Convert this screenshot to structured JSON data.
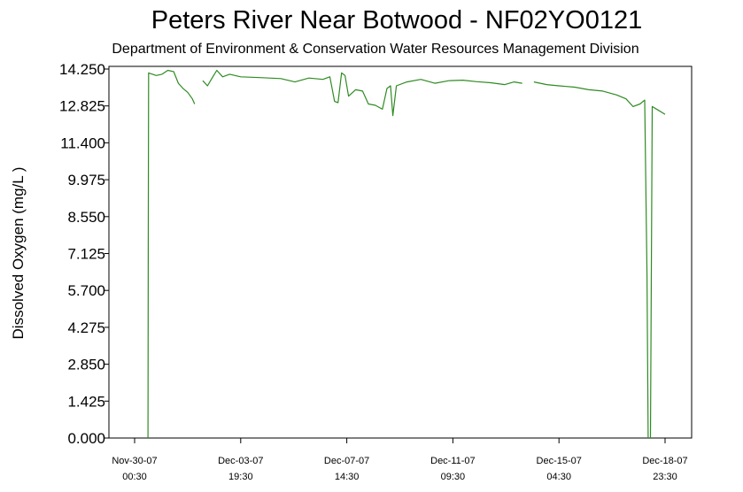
{
  "chart_data": {
    "type": "line",
    "title": "Peters River Near Botwood - NF02YO0121",
    "subtitle": "Department of Environment & Conservation Water Resources Management Division",
    "xlabel": "",
    "ylabel": "Dissolved Oxygen (mg/L )",
    "ylim": [
      0,
      14.25
    ],
    "yticks": [
      "0.000",
      "1.425",
      "2.850",
      "4.275",
      "5.700",
      "7.125",
      "8.550",
      "9.975",
      "11.400",
      "12.825",
      "14.250"
    ],
    "xticks": [
      {
        "date": "Nov-30-07",
        "time": "00:30"
      },
      {
        "date": "Dec-03-07",
        "time": "19:30"
      },
      {
        "date": "Dec-07-07",
        "time": "14:30"
      },
      {
        "date": "Dec-11-07",
        "time": "09:30"
      },
      {
        "date": "Dec-15-07",
        "time": "04:30"
      },
      {
        "date": "Dec-18-07",
        "time": "23:30"
      }
    ],
    "grid": false,
    "series": [
      {
        "color": "#2e8b22",
        "segments": [
          [
            [
              "2007-11-30T12:00",
              0.0
            ],
            [
              "2007-11-30T12:10",
              7.1
            ],
            [
              "2007-11-30T12:30",
              14.1
            ],
            [
              "2007-11-30T19:00",
              14.0
            ],
            [
              "2007-12-01T00:00",
              14.05
            ],
            [
              "2007-12-01T05:00",
              14.2
            ],
            [
              "2007-12-01T10:00",
              14.15
            ],
            [
              "2007-12-01T14:00",
              13.7
            ],
            [
              "2007-12-01T18:00",
              13.5
            ],
            [
              "2007-12-01T22:00",
              13.35
            ],
            [
              "2007-12-02T02:00",
              13.1
            ],
            [
              "2007-12-02T04:00",
              12.9
            ]
          ],
          [
            [
              "2007-12-02T11:00",
              13.8
            ],
            [
              "2007-12-02T15:00",
              13.6
            ],
            [
              "2007-12-02T19:00",
              13.9
            ],
            [
              "2007-12-02T23:00",
              14.2
            ],
            [
              "2007-12-03T04:00",
              13.95
            ],
            [
              "2007-12-03T10:00",
              14.05
            ],
            [
              "2007-12-03T19:30",
              13.95
            ],
            [
              "2007-12-04T12:00",
              13.92
            ],
            [
              "2007-12-05T06:00",
              13.88
            ],
            [
              "2007-12-05T18:00",
              13.75
            ],
            [
              "2007-12-06T06:00",
              13.9
            ],
            [
              "2007-12-06T18:00",
              13.85
            ],
            [
              "2007-12-07T00:00",
              13.95
            ],
            [
              "2007-12-07T04:00",
              13.0
            ],
            [
              "2007-12-07T07:00",
              12.95
            ],
            [
              "2007-12-07T10:00",
              14.1
            ],
            [
              "2007-12-07T13:00",
              14.0
            ],
            [
              "2007-12-07T16:00",
              13.2
            ],
            [
              "2007-12-07T22:00",
              13.45
            ],
            [
              "2007-12-08T04:00",
              13.4
            ],
            [
              "2007-12-08T09:00",
              12.9
            ],
            [
              "2007-12-08T15:00",
              12.85
            ],
            [
              "2007-12-08T21:00",
              12.7
            ],
            [
              "2007-12-09T01:00",
              13.5
            ],
            [
              "2007-12-09T04:00",
              13.6
            ],
            [
              "2007-12-09T06:00",
              12.45
            ],
            [
              "2007-12-09T09:00",
              13.6
            ],
            [
              "2007-12-09T18:00",
              13.75
            ],
            [
              "2007-12-10T06:00",
              13.85
            ],
            [
              "2007-12-10T18:00",
              13.7
            ],
            [
              "2007-12-11T06:00",
              13.8
            ],
            [
              "2007-12-11T18:00",
              13.82
            ],
            [
              "2007-12-12T06:00",
              13.76
            ],
            [
              "2007-12-12T18:00",
              13.72
            ],
            [
              "2007-12-13T06:00",
              13.65
            ],
            [
              "2007-12-13T14:00",
              13.75
            ],
            [
              "2007-12-13T21:00",
              13.7
            ]
          ],
          [
            [
              "2007-12-14T07:00",
              13.75
            ],
            [
              "2007-12-14T18:00",
              13.65
            ],
            [
              "2007-12-15T04:30",
              13.6
            ],
            [
              "2007-12-15T18:00",
              13.55
            ],
            [
              "2007-12-16T06:00",
              13.45
            ],
            [
              "2007-12-16T18:00",
              13.4
            ],
            [
              "2007-12-17T06:00",
              13.25
            ],
            [
              "2007-12-17T14:00",
              13.1
            ],
            [
              "2007-12-17T20:00",
              12.8
            ],
            [
              "2007-12-18T02:00",
              12.9
            ],
            [
              "2007-12-18T06:00",
              13.05
            ],
            [
              "2007-12-18T08:00",
              6.3
            ],
            [
              "2007-12-18T09:00",
              0.0
            ]
          ],
          [
            [
              "2007-12-18T11:00",
              0.0
            ],
            [
              "2007-12-18T12:30",
              12.8
            ],
            [
              "2007-12-18T18:00",
              12.65
            ],
            [
              "2007-12-18T23:30",
              12.5
            ]
          ]
        ]
      }
    ]
  }
}
